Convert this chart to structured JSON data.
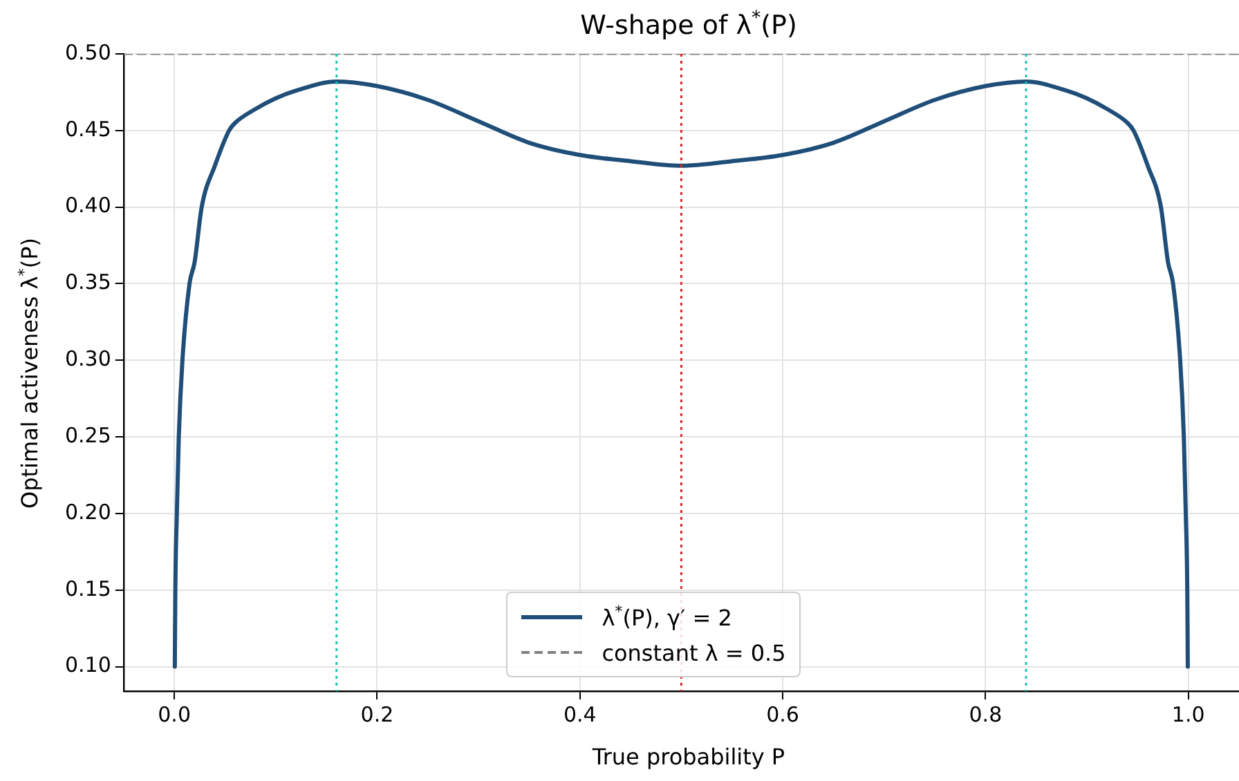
{
  "chart_data": {
    "type": "line",
    "title": "W-shape of λ$^{*}$(P)",
    "xlabel": "True probability P",
    "ylabel": "Optimal activeness λ$^{*}$(P)",
    "xlim": [
      -0.05,
      1.05
    ],
    "ylim": [
      0.084,
      0.5
    ],
    "xticks": [
      {
        "value": 0,
        "label": "0.0"
      },
      0.2,
      0.4,
      0.6,
      0.8,
      {
        "value": 1,
        "label": "1.0"
      }
    ],
    "yticks": [
      {
        "value": 0.1,
        "label": "0.10"
      },
      0.15,
      {
        "value": 0.2,
        "label": "0.20"
      },
      0.25,
      {
        "value": 0.3,
        "label": "0.30"
      },
      0.35,
      {
        "value": 0.4,
        "label": "0.40"
      },
      0.45,
      {
        "value": 0.5,
        "label": "0.50"
      }
    ],
    "grid": true,
    "legend": "bottom",
    "series": [
      {
        "name": "λ$^{*}$(P), γ′ = 2",
        "color": "#1f4e79",
        "x": [
          0.0005,
          0.001,
          0.0025,
          0.0044,
          0.008,
          0.015,
          0.02,
          0.027,
          0.04,
          0.054,
          0.06,
          0.08,
          0.1,
          0.12,
          0.16,
          0.2,
          0.25,
          0.3,
          0.35,
          0.4,
          0.45,
          0.5,
          0.55,
          0.6,
          0.65,
          0.7,
          0.75,
          0.8,
          0.84,
          0.88,
          0.9,
          0.92,
          0.94,
          0.946,
          0.96,
          0.973,
          0.98,
          0.985,
          0.992,
          0.9956,
          0.9975,
          0.999,
          0.9995
        ],
        "values": [
          0.1,
          0.15,
          0.2,
          0.25,
          0.3,
          0.35,
          0.364,
          0.4,
          0.427,
          0.45,
          0.455,
          0.464,
          0.471,
          0.476,
          0.482,
          0.479,
          0.47,
          0.456,
          0.442,
          0.434,
          0.43,
          0.427,
          0.43,
          0.434,
          0.442,
          0.456,
          0.47,
          0.479,
          0.482,
          0.476,
          0.471,
          0.464,
          0.455,
          0.45,
          0.427,
          0.4,
          0.364,
          0.35,
          0.3,
          0.25,
          0.2,
          0.15,
          0.1
        ]
      },
      {
        "name": "constant λ = 0.5",
        "color": "#808080",
        "line_style": "dashed",
        "x": [
          -0.05,
          1.05
        ],
        "values": [
          0.5,
          0.5
        ]
      }
    ],
    "ref_lines": [
      {
        "axis": "x",
        "value": 0.16,
        "color": "#17c3b2",
        "line_style": "dotted"
      },
      {
        "axis": "x",
        "value": 0.5,
        "color": "#d62728",
        "line_style": "dotted"
      },
      {
        "axis": "x",
        "value": 0.84,
        "color": "#17c3b2",
        "line_style": "dotted"
      }
    ]
  }
}
